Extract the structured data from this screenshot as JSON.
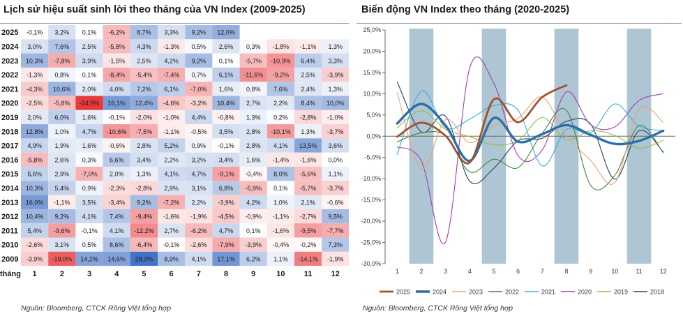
{
  "left_title": "Lịch sử hiệu suất sinh lời theo tháng của VN Index (2009-2025)",
  "right_title": "Biến động VN Index theo tháng (2020-2025)",
  "left_source": "Nguồn:  Bloomberg, CTCK Rồng Việt tổng hợp",
  "right_source": "Nguồn:  Bloomberg, CTCK Rồng Việt tổng hợp",
  "colors": {
    "positive": "#4472c4",
    "negative": "#e8393c",
    "shade": "#aec6d3"
  },
  "chart_data": [
    {
      "type": "heatmap",
      "title": "Lịch sử hiệu suất sinh lời theo tháng của VN Index (2009-2025)",
      "x_axis_label": "tháng",
      "columns": [
        "1",
        "2",
        "3",
        "4",
        "5",
        "6",
        "7",
        "8",
        "9",
        "10",
        "11",
        "12"
      ],
      "rows": [
        "2025",
        "2024",
        "2023",
        "2022",
        "2021",
        "2020",
        "2019",
        "2018",
        "2017",
        "2016",
        "2015",
        "2014",
        "2013",
        "2012",
        "2011",
        "2010",
        "2009"
      ],
      "cells": [
        [
          "-0,1%",
          "3,2%",
          "0,1%",
          "-6,2%",
          "8,7%",
          "3,3%",
          "9,2%",
          "12,0%",
          "",
          "",
          "",
          ""
        ],
        [
          "3,0%",
          "7,6%",
          "2,5%",
          "-5,8%",
          "4,3%",
          "-1,3%",
          "0,5%",
          "2,6%",
          "0,3%",
          "-1,8%",
          "-1,1%",
          "1,3%"
        ],
        [
          "10,3%",
          "-7,8%",
          "3,9%",
          "-1,5%",
          "2,5%",
          "4,2%",
          "9,2%",
          "0,1%",
          "-5,7%",
          "-10,9%",
          "6,4%",
          "3,3%"
        ],
        [
          "-1,3%",
          "0,8%",
          "0,1%",
          "-8,4%",
          "-5,4%",
          "-7,4%",
          "0,7%",
          "6,1%",
          "-11,6%",
          "-9,2%",
          "2,5%",
          "-3,9%"
        ],
        [
          "-4,3%",
          "10,6%",
          "2,0%",
          "4,0%",
          "7,2%",
          "6,1%",
          "-7,0%",
          "1,6%",
          "0,8%",
          "7,6%",
          "2,4%",
          "1,3%"
        ],
        [
          "-2,5%",
          "-5,8%",
          "-24,9%",
          "16,1%",
          "12,4%",
          "-4,6%",
          "-3,2%",
          "10,4%",
          "2,7%",
          "2,2%",
          "8,4%",
          "10,0%"
        ],
        [
          "2,0%",
          "6,0%",
          "1,6%",
          "-0,1%",
          "-2,0%",
          "-1,0%",
          "4,4%",
          "-0,8%",
          "1,3%",
          "0,2%",
          "-2,8%",
          "-1,0%"
        ],
        [
          "12,8%",
          "1,0%",
          "4,7%",
          "-10,6%",
          "-7,5%",
          "-1,1%",
          "-0,5%",
          "3,5%",
          "2,8%",
          "-10,1%",
          "1,3%",
          "-3,7%"
        ],
        [
          "4,9%",
          "1,9%",
          "1,6%",
          "-0,6%",
          "2,8%",
          "5,2%",
          "0,9%",
          "-0,1%",
          "2,8%",
          "4,1%",
          "13,5%",
          "3,6%"
        ],
        [
          "-5,8%",
          "2,6%",
          "0,3%",
          "6,6%",
          "3,4%",
          "2,2%",
          "3,2%",
          "3,4%",
          "1,6%",
          "-1,4%",
          "-1,6%",
          "0,0%"
        ],
        [
          "5,6%",
          "2,9%",
          "-7,0%",
          "2,0%",
          "1,3%",
          "4,1%",
          "4,7%",
          "-9,1%",
          "-0,4%",
          "8,0%",
          "-5,6%",
          "1,1%"
        ],
        [
          "10,3%",
          "5,4%",
          "0,9%",
          "-2,3%",
          "-2,8%",
          "2,9%",
          "3,1%",
          "6,8%",
          "-5,9%",
          "0,1%",
          "-5,7%",
          "-3,7%"
        ],
        [
          "16,0%",
          "-1,1%",
          "3,5%",
          "-3,4%",
          "9,2%",
          "-7,2%",
          "2,2%",
          "-3,9%",
          "4,2%",
          "1,0%",
          "2,1%",
          "-0,6%"
        ],
        [
          "10,4%",
          "9,2%",
          "4,1%",
          "7,4%",
          "-9,4%",
          "-1,6%",
          "-1,9%",
          "-4,5%",
          "-0,9%",
          "-1,1%",
          "-2,7%",
          "9,5%"
        ],
        [
          "5,4%",
          "-9,6%",
          "-0,1%",
          "4,1%",
          "-12,2%",
          "2,7%",
          "-6,2%",
          "4,7%",
          "0,1%",
          "-1,6%",
          "-9,5%",
          "-7,7%"
        ],
        [
          "-2,6%",
          "3,1%",
          "0,5%",
          "8,6%",
          "-6,4%",
          "-0,1%",
          "-2,6%",
          "-7,9%",
          "-3,9%",
          "-0,4%",
          "-0,2%",
          "7,3%"
        ],
        [
          "-3,9%",
          "-19,0%",
          "14,2%",
          "14,6%",
          "28,0%",
          "8,9%",
          "4,1%",
          "17,1%",
          "6,2%",
          "1,1%",
          "-14,1%",
          "-1,9%"
        ]
      ]
    },
    {
      "type": "line",
      "title": "Biến động VN Index theo tháng (2020-2025)",
      "x": [
        1,
        2,
        3,
        4,
        5,
        6,
        7,
        8,
        9,
        10,
        11,
        12
      ],
      "ylim": [
        -30,
        25
      ],
      "yticks": [
        "25,0%",
        "20,0%",
        "15,0%",
        "10,0%",
        "5,0%",
        "0,0%",
        "-5,0%",
        "-10,0%",
        "-15,0%",
        "-20,0%",
        "-25,0%",
        "-30,0%"
      ],
      "ytick_values": [
        25,
        20,
        15,
        10,
        5,
        0,
        -5,
        -10,
        -15,
        -20,
        -25,
        -30
      ],
      "xticks": [
        "1",
        "2",
        "3",
        "4",
        "5",
        "6",
        "7",
        "8",
        "9",
        "10",
        "11",
        "12"
      ],
      "shaded_months": [
        2,
        5,
        8,
        11
      ],
      "grid": false,
      "legend_position": "bottom",
      "series": [
        {
          "name": "2025",
          "color": "#a0522d",
          "width": 2.8,
          "values": [
            -0.1,
            3.2,
            0.1,
            -6.2,
            8.7,
            3.3,
            9.2,
            12.0,
            null,
            null,
            null,
            null
          ]
        },
        {
          "name": "2024",
          "color": "#2a6fa8",
          "width": 3.4,
          "values": [
            3.0,
            7.6,
            2.5,
            -5.8,
            4.3,
            -1.3,
            0.5,
            2.6,
            0.3,
            -1.8,
            -1.1,
            1.3
          ]
        },
        {
          "name": "2023",
          "color": "#f0a070",
          "width": 1.1,
          "values": [
            10.3,
            -7.8,
            3.9,
            -1.5,
            2.5,
            4.2,
            9.2,
            0.1,
            -5.7,
            -10.9,
            6.4,
            3.3
          ]
        },
        {
          "name": "2022",
          "color": "#3a8a3a",
          "width": 1.1,
          "values": [
            -1.3,
            0.8,
            0.1,
            -8.4,
            -5.4,
            -7.4,
            0.7,
            6.1,
            -11.6,
            -9.2,
            2.5,
            -3.9
          ]
        },
        {
          "name": "2021",
          "color": "#3aaad8",
          "width": 1.1,
          "values": [
            -4.3,
            10.6,
            2.0,
            4.0,
            7.2,
            6.1,
            -7.0,
            1.6,
            0.8,
            7.6,
            2.4,
            1.3
          ]
        },
        {
          "name": "2020",
          "color": "#9b3fb0",
          "width": 1.1,
          "values": [
            -2.5,
            -5.8,
            -24.9,
            16.1,
            12.4,
            -4.6,
            -3.2,
            10.4,
            2.7,
            2.2,
            8.4,
            10.0
          ]
        },
        {
          "name": "2019",
          "color": "#9ab840",
          "width": 1.1,
          "values": [
            2.0,
            6.0,
            1.6,
            -0.1,
            -2.0,
            -1.0,
            4.4,
            -0.8,
            1.3,
            0.2,
            -2.8,
            -1.0
          ]
        },
        {
          "name": "2018",
          "color": "#24405e",
          "width": 1.1,
          "values": [
            12.8,
            1.0,
            4.7,
            -10.6,
            -7.5,
            -1.1,
            -0.5,
            3.5,
            2.8,
            -10.1,
            1.3,
            -3.7
          ]
        }
      ]
    }
  ]
}
